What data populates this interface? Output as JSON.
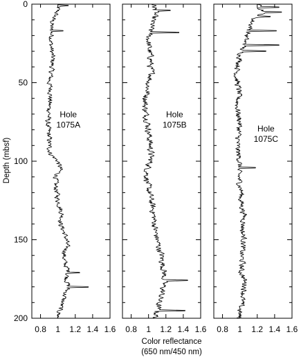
{
  "chart_data": {
    "type": "line",
    "ylabel": "Depth (mbsf)",
    "xlabel": [
      "Color reflectance",
      "(650 nm/450 nm)"
    ],
    "ylim": [
      0,
      200
    ],
    "y_ticks": [
      "0",
      "50",
      "100",
      "150",
      "200"
    ],
    "y_tick_values": [
      0,
      50,
      100,
      150,
      200
    ],
    "xlim": [
      0.7,
      1.6
    ],
    "x_ticks": [
      "0.8",
      "1",
      "1.2",
      "1.4",
      "1.6"
    ],
    "x_tick_values": [
      0.8,
      1.0,
      1.2,
      1.4,
      1.6
    ],
    "grid": false,
    "panels": [
      {
        "label": [
          "Hole",
          "1075A"
        ],
        "label_at": {
          "x": 1.12,
          "depth": 73
        },
        "depth_range": [
          0,
          200
        ],
        "profile": [
          [
            0,
            1.01
          ],
          [
            5,
            0.99
          ],
          [
            10,
            0.94
          ],
          [
            15,
            0.92
          ],
          [
            20,
            0.93
          ],
          [
            25,
            0.92
          ],
          [
            30,
            0.93
          ],
          [
            35,
            0.94
          ],
          [
            40,
            0.93
          ],
          [
            45,
            0.92
          ],
          [
            50,
            0.9
          ],
          [
            55,
            0.92
          ],
          [
            60,
            0.91
          ],
          [
            65,
            0.9
          ],
          [
            70,
            0.9
          ],
          [
            75,
            0.88
          ],
          [
            80,
            0.89
          ],
          [
            85,
            0.9
          ],
          [
            90,
            0.9
          ],
          [
            95,
            0.91
          ],
          [
            100,
            1.0
          ],
          [
            105,
            1.03
          ],
          [
            110,
            0.98
          ],
          [
            115,
            0.97
          ],
          [
            120,
            0.99
          ],
          [
            125,
            1.0
          ],
          [
            130,
            1.03
          ],
          [
            135,
            1.05
          ],
          [
            140,
            1.03
          ],
          [
            145,
            1.07
          ],
          [
            150,
            1.1
          ],
          [
            155,
            1.1
          ],
          [
            160,
            1.07
          ],
          [
            165,
            1.08
          ],
          [
            170,
            1.12
          ],
          [
            175,
            1.1
          ],
          [
            180,
            1.12
          ],
          [
            185,
            1.08
          ],
          [
            190,
            1.05
          ],
          [
            195,
            1.02
          ],
          [
            200,
            1.0
          ]
        ],
        "amplitude": 0.045,
        "spikes": [
          [
            1,
            1.12
          ],
          [
            17,
            1.06
          ],
          [
            171,
            1.25
          ],
          [
            180,
            1.35
          ]
        ]
      },
      {
        "label": [
          "Hole",
          "1075B"
        ],
        "label_at": {
          "x": 1.3,
          "depth": 73
        },
        "depth_range": [
          0,
          200
        ],
        "profile": [
          [
            0,
            1.06
          ],
          [
            5,
            1.08
          ],
          [
            10,
            1.05
          ],
          [
            15,
            1.03
          ],
          [
            20,
            1.0
          ],
          [
            25,
            1.0
          ],
          [
            30,
            1.01
          ],
          [
            35,
            1.03
          ],
          [
            40,
            1.02
          ],
          [
            45,
            1.04
          ],
          [
            50,
            1.0
          ],
          [
            55,
            0.99
          ],
          [
            60,
            0.97
          ],
          [
            65,
            0.96
          ],
          [
            70,
            0.97
          ],
          [
            75,
            0.99
          ],
          [
            80,
            1.0
          ],
          [
            85,
            1.01
          ],
          [
            90,
            1.02
          ],
          [
            95,
            1.03
          ],
          [
            100,
            1.02
          ],
          [
            105,
            0.99
          ],
          [
            110,
            0.98
          ],
          [
            115,
            0.99
          ],
          [
            120,
            1.01
          ],
          [
            125,
            1.03
          ],
          [
            130,
            1.05
          ],
          [
            135,
            1.06
          ],
          [
            140,
            1.07
          ],
          [
            145,
            1.08
          ],
          [
            150,
            1.1
          ],
          [
            155,
            1.12
          ],
          [
            160,
            1.15
          ],
          [
            165,
            1.16
          ],
          [
            170,
            1.18
          ],
          [
            175,
            1.18
          ],
          [
            180,
            1.17
          ],
          [
            185,
            1.15
          ],
          [
            190,
            1.12
          ],
          [
            195,
            1.1
          ],
          [
            200,
            1.08
          ]
        ],
        "amplitude": 0.055,
        "spikes": [
          [
            4,
            1.25
          ],
          [
            18,
            1.35
          ],
          [
            176,
            1.45
          ],
          [
            195,
            1.42
          ]
        ]
      },
      {
        "label": [
          "Hole",
          "1075C"
        ],
        "label_at": {
          "x": 1.3,
          "depth": 82
        },
        "depth_range": [
          0,
          200
        ],
        "profile": [
          [
            0,
            1.2
          ],
          [
            5,
            1.28
          ],
          [
            10,
            1.15
          ],
          [
            15,
            1.12
          ],
          [
            20,
            1.08
          ],
          [
            25,
            1.05
          ],
          [
            30,
            1.02
          ],
          [
            35,
            1.0
          ],
          [
            40,
            0.98
          ],
          [
            45,
            0.96
          ],
          [
            50,
            0.97
          ],
          [
            55,
            0.99
          ],
          [
            60,
            0.98
          ],
          [
            65,
            0.97
          ],
          [
            70,
            0.98
          ],
          [
            75,
            1.0
          ],
          [
            80,
            0.99
          ],
          [
            85,
            0.98
          ],
          [
            90,
            0.97
          ],
          [
            95,
            0.98
          ],
          [
            100,
            1.0
          ],
          [
            105,
            0.98
          ],
          [
            110,
            0.99
          ],
          [
            115,
            1.0
          ],
          [
            120,
            1.02
          ],
          [
            125,
            1.01
          ],
          [
            130,
            1.03
          ],
          [
            135,
            1.05
          ],
          [
            140,
            1.04
          ],
          [
            145,
            1.03
          ],
          [
            150,
            1.05
          ],
          [
            155,
            1.03
          ],
          [
            160,
            1.02
          ],
          [
            165,
            1.03
          ],
          [
            170,
            1.01
          ],
          [
            175,
            1.05
          ],
          [
            180,
            1.06
          ],
          [
            185,
            1.04
          ],
          [
            190,
            1.02
          ],
          [
            195,
            1.0
          ],
          [
            200,
            0.99
          ]
        ],
        "amplitude": 0.05,
        "spikes": [
          [
            2,
            1.45
          ],
          [
            5,
            1.48
          ],
          [
            8,
            1.35
          ],
          [
            17,
            1.42
          ],
          [
            26,
            1.45
          ],
          [
            30,
            1.3
          ],
          [
            104,
            1.18
          ]
        ]
      }
    ]
  }
}
